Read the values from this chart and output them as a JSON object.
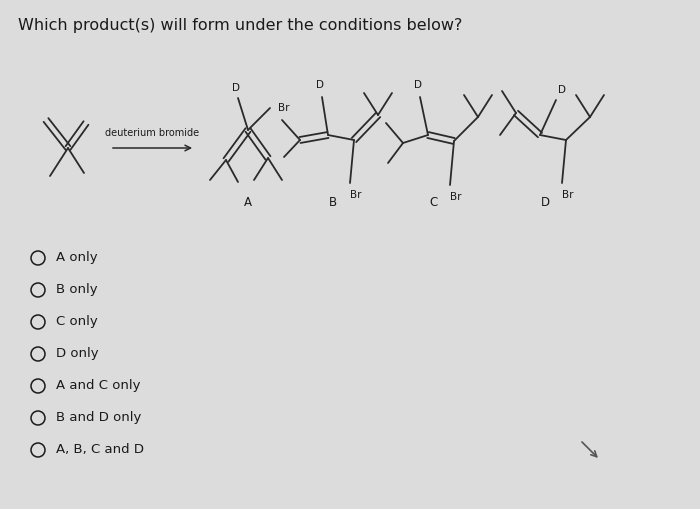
{
  "title": "Which product(s) will form under the conditions below?",
  "title_fontsize": 11.5,
  "reagent_label": "deuterium bromide",
  "choices": [
    "A only",
    "B only",
    "C only",
    "D only",
    "A and C only",
    "B and D only",
    "A, B, C and D"
  ],
  "bg_color": "#dcdcdc",
  "text_color": "#1a1a1a",
  "line_color": "#2a2a2a"
}
